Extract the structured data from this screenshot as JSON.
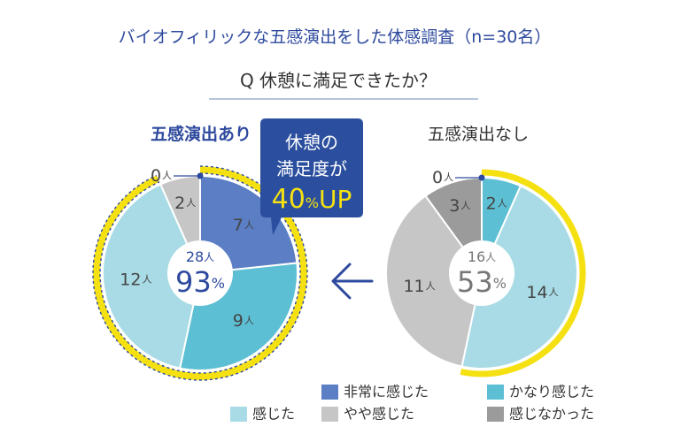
{
  "title": "バイオフィリックな五感演出をした体感調査（n=30名）",
  "question": "Q 休憩に満足できたか？",
  "unit": "人",
  "percent_sign": "%",
  "callout": {
    "line1": "休憩の",
    "line2": "満足度が",
    "value": "40",
    "pct": "%",
    "suffix": "UP"
  },
  "colors": {
    "very": "#5b7ec4",
    "fairly": "#5dbfd3",
    "felt": "#a8dbe5",
    "somewhat": "#c6c6c6",
    "not": "#9b9b9b",
    "highlight": "#f5e012",
    "navy": "#2e4a9e",
    "callout_bg": "#2b4f9e",
    "callout_value": "#f5e012"
  },
  "chart_data": [
    {
      "type": "pie",
      "group_label": "五感演出あり",
      "center_count": "28",
      "center_percent": "93",
      "categories": [
        "非常に感じた",
        "かなり感じた",
        "感じた",
        "やや感じた",
        "感じなかった"
      ],
      "values": [
        7,
        9,
        12,
        2,
        0
      ]
    },
    {
      "type": "pie",
      "group_label": "五感演出なし",
      "center_count": "16",
      "center_percent": "53",
      "categories": [
        "かなり感じた",
        "感じた",
        "やや感じた",
        "感じなかった",
        "非常に感じた"
      ],
      "values": [
        2,
        14,
        11,
        3,
        0
      ]
    }
  ],
  "legend": [
    {
      "label": "非常に感じた",
      "color_key": "very"
    },
    {
      "label": "かなり感じた",
      "color_key": "fairly"
    },
    {
      "label": "感じた",
      "color_key": "felt"
    },
    {
      "label": "やや感じた",
      "color_key": "somewhat"
    },
    {
      "label": "感じなかった",
      "color_key": "not"
    }
  ]
}
